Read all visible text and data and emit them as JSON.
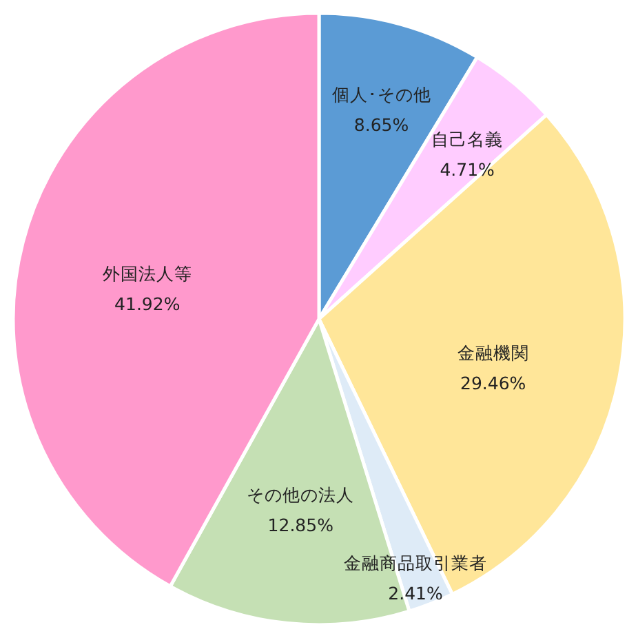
{
  "chart_data": {
    "type": "pie",
    "categories": [
      "個人･その他",
      "自己名義",
      "金融機関",
      "金融商品取引業者",
      "その他の法人",
      "外国法人等"
    ],
    "values": [
      8.65,
      4.71,
      29.46,
      2.41,
      12.85,
      41.92
    ],
    "value_labels": [
      "8.65%",
      "4.71%",
      "29.46%",
      "2.41%",
      "12.85%",
      "41.92%"
    ],
    "colors": [
      "#5b9bd5",
      "#ffccff",
      "#ffe699",
      "#deebf7",
      "#c5e0b4",
      "#ff99cc"
    ]
  }
}
